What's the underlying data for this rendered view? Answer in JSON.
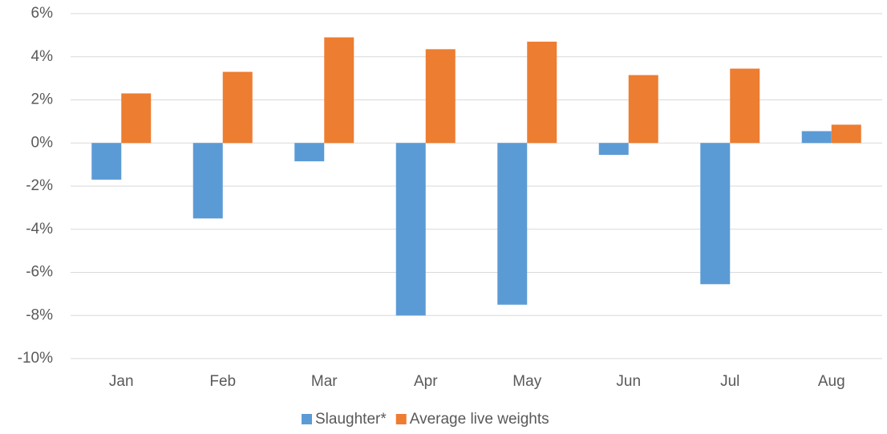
{
  "chart_data": {
    "type": "bar",
    "categories": [
      "Jan",
      "Feb",
      "Mar",
      "Apr",
      "May",
      "Jun",
      "Jul",
      "Aug"
    ],
    "series": [
      {
        "name": "Slaughter*",
        "color": "#5b9bd5",
        "values": [
          -1.7,
          -3.5,
          -0.85,
          -8.0,
          -7.5,
          -0.55,
          -6.55,
          0.55
        ]
      },
      {
        "name": "Average live weights",
        "color": "#ed7d31",
        "values": [
          2.3,
          3.3,
          4.9,
          4.35,
          4.7,
          3.15,
          3.45,
          0.85
        ]
      }
    ],
    "ylim": [
      -10,
      6
    ],
    "yticks": [
      {
        "value": -10,
        "label": "-10%"
      },
      {
        "value": -8,
        "label": "-8%"
      },
      {
        "value": -6,
        "label": "-6%"
      },
      {
        "value": -4,
        "label": "-4%"
      },
      {
        "value": -2,
        "label": "-2%"
      },
      {
        "value": 0,
        "label": "0%"
      },
      {
        "value": 2,
        "label": "2%"
      },
      {
        "value": 4,
        "label": "4%"
      },
      {
        "value": 6,
        "label": "6%"
      }
    ],
    "grid": true,
    "legend": "bottom"
  }
}
